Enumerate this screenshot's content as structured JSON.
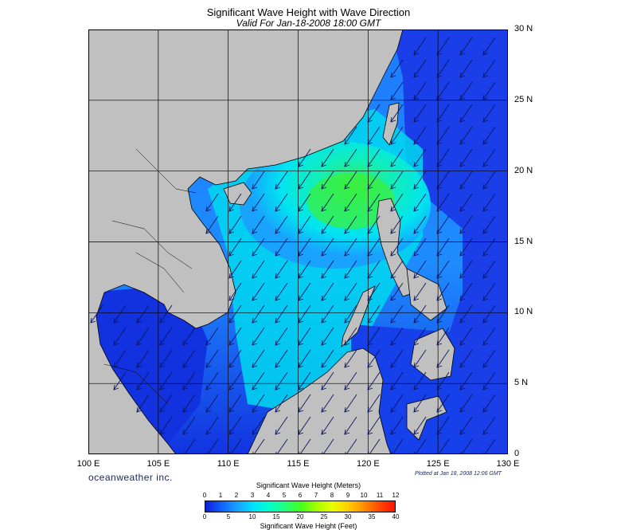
{
  "title": "Significant Wave Height with Wave Direction",
  "subtitle": "Valid For Jan-18-2008 18:00 GMT",
  "brand": "oceanweather inc.",
  "plotted": "Plotted at Jan 18, 2008 12:06 GMT",
  "lat_labels": [
    "30 N",
    "25 N",
    "20 N",
    "15 N",
    "10 N",
    "5 N",
    "0"
  ],
  "lat_values": [
    30,
    25,
    20,
    15,
    10,
    5,
    0
  ],
  "lon_labels": [
    "100 E",
    "105 E",
    "110 E",
    "115 E",
    "120 E",
    "125 E",
    "130 E"
  ],
  "lon_values": [
    100,
    105,
    110,
    115,
    120,
    125,
    130
  ],
  "map_extent": {
    "lon_min": 100,
    "lon_max": 130,
    "lat_min": 0,
    "lat_max": 30
  },
  "legend": {
    "meters_title": "Significant Wave Height (Meters)",
    "feet_title": "Significant Wave Height (Feet)",
    "meters_ticks": [
      "0",
      "1",
      "2",
      "3",
      "4",
      "5",
      "6",
      "7",
      "8",
      "9",
      "10",
      "11",
      "12"
    ],
    "feet_ticks": [
      "0",
      "5",
      "10",
      "15",
      "20",
      "25",
      "30",
      "35",
      "40"
    ],
    "meters_max": 12,
    "feet_max": 40,
    "colors": [
      "#0a1fd6",
      "#1060ff",
      "#1aa0ff",
      "#00e0ff",
      "#00ffd0",
      "#20ff80",
      "#40ff20",
      "#a0ff00",
      "#e8ff00",
      "#ffd000",
      "#ff9000",
      "#ff4a00",
      "#ff1000"
    ]
  },
  "colors": {
    "land": "#c0c0c0",
    "grid": "#000000",
    "arrow": "#0b1560",
    "sea_low": "#1428e6",
    "sea_mid": "#1e8cff",
    "sea_high": "#00f0f0",
    "sea_peak": "#3cef3c"
  },
  "wave_direction": "from northeast to southwest"
}
